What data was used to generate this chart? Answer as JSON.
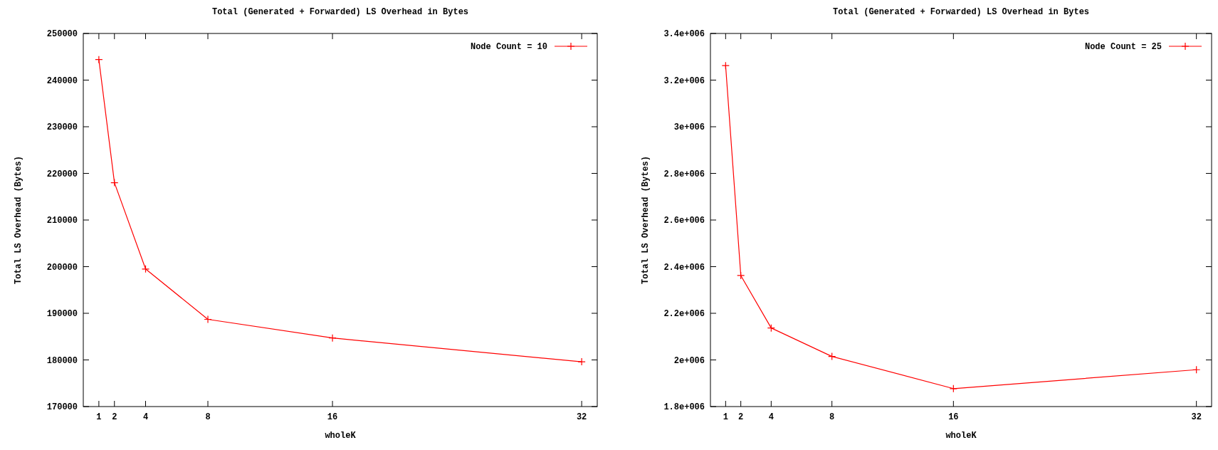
{
  "chart_data": [
    {
      "type": "line",
      "title": "Total (Generated + Forwarded) LS Overhead in Bytes",
      "xlabel": "wholeK",
      "ylabel": "Total LS Overhead (Bytes)",
      "x": [
        1,
        2,
        4,
        8,
        16,
        32
      ],
      "series": [
        {
          "name": "Node Count = 10",
          "color": "#ff0000",
          "values": [
            244400,
            218000,
            199500,
            188700,
            184700,
            179600
          ]
        }
      ],
      "xlim": [
        0,
        33
      ],
      "xticks": [
        1,
        2,
        4,
        8,
        16,
        32
      ],
      "ylim": [
        170000,
        250000
      ],
      "yticks": [
        170000,
        180000,
        190000,
        200000,
        210000,
        220000,
        230000,
        240000,
        250000
      ],
      "legend": "top right",
      "marker": "cross",
      "grid": false
    },
    {
      "type": "line",
      "title": "Total (Generated + Forwarded) LS Overhead in Bytes",
      "xlabel": "wholeK",
      "ylabel": "Total LS Overhead (Bytes)",
      "x": [
        1,
        2,
        4,
        8,
        16,
        32
      ],
      "series": [
        {
          "name": "Node Count = 25",
          "color": "#ff0000",
          "values": [
            3262000,
            2362000,
            2137000,
            2015000,
            1877000,
            1958000
          ]
        }
      ],
      "xlim": [
        0,
        33
      ],
      "xticks": [
        1,
        2,
        4,
        8,
        16,
        32
      ],
      "ylim": [
        1800000,
        3400000
      ],
      "yticks": [
        {
          "value": 1800000,
          "label": "1.8e+006"
        },
        {
          "value": 2000000,
          "label": "2e+006"
        },
        {
          "value": 2200000,
          "label": "2.2e+006"
        },
        {
          "value": 2400000,
          "label": "2.4e+006"
        },
        {
          "value": 2600000,
          "label": "2.6e+006"
        },
        {
          "value": 2800000,
          "label": "2.8e+006"
        },
        {
          "value": 3000000,
          "label": "3e+006"
        },
        {
          "value": 3200000,
          "label": "3.2e+006"
        },
        {
          "value": 3400000,
          "label": "3.4e+006"
        }
      ],
      "legend": "top right",
      "marker": "cross",
      "grid": false
    }
  ]
}
